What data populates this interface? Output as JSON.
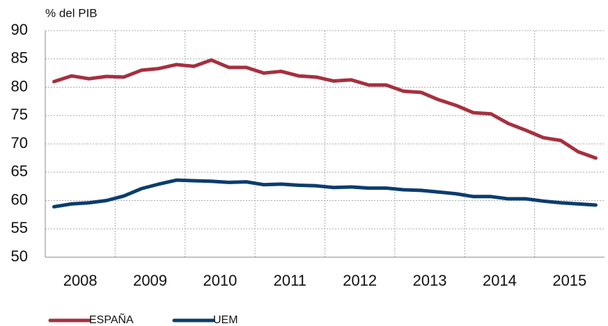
{
  "chart_data": {
    "type": "line",
    "y_axis_label": "% del PIB",
    "categories": [
      null,
      "2008",
      null,
      null,
      null,
      "2009",
      null,
      null,
      null,
      "2010",
      null,
      null,
      null,
      "2011",
      null,
      null,
      null,
      "2012",
      null,
      null,
      null,
      "2013",
      null,
      null,
      null,
      "2014",
      null,
      null,
      null,
      "2015",
      null,
      null
    ],
    "series": [
      {
        "name": "ESPAÑA",
        "color": "#a5303f",
        "values": [
          81.0,
          82.0,
          81.5,
          81.9,
          81.8,
          83.0,
          83.3,
          84.0,
          83.7,
          84.8,
          83.5,
          83.5,
          82.5,
          82.8,
          82.0,
          81.8,
          81.1,
          81.3,
          80.4,
          80.4,
          79.3,
          79.1,
          77.8,
          76.8,
          75.5,
          75.3,
          73.6,
          72.4,
          71.1,
          70.6,
          68.6,
          67.5
        ]
      },
      {
        "name": "UEM",
        "color": "#0a3d6e",
        "values": [
          58.9,
          59.4,
          59.6,
          60.0,
          60.8,
          62.1,
          62.9,
          63.6,
          63.5,
          63.4,
          63.2,
          63.3,
          62.8,
          62.9,
          62.7,
          62.6,
          62.3,
          62.4,
          62.2,
          62.2,
          61.9,
          61.8,
          61.5,
          61.2,
          60.7,
          60.7,
          60.3,
          60.3,
          59.9,
          59.6,
          59.4,
          59.2
        ]
      }
    ],
    "ylim": [
      50,
      90
    ],
    "yticks": [
      50,
      55,
      60,
      65,
      70,
      75,
      80,
      85,
      90
    ],
    "grid": true,
    "legend": "bottom-left"
  }
}
